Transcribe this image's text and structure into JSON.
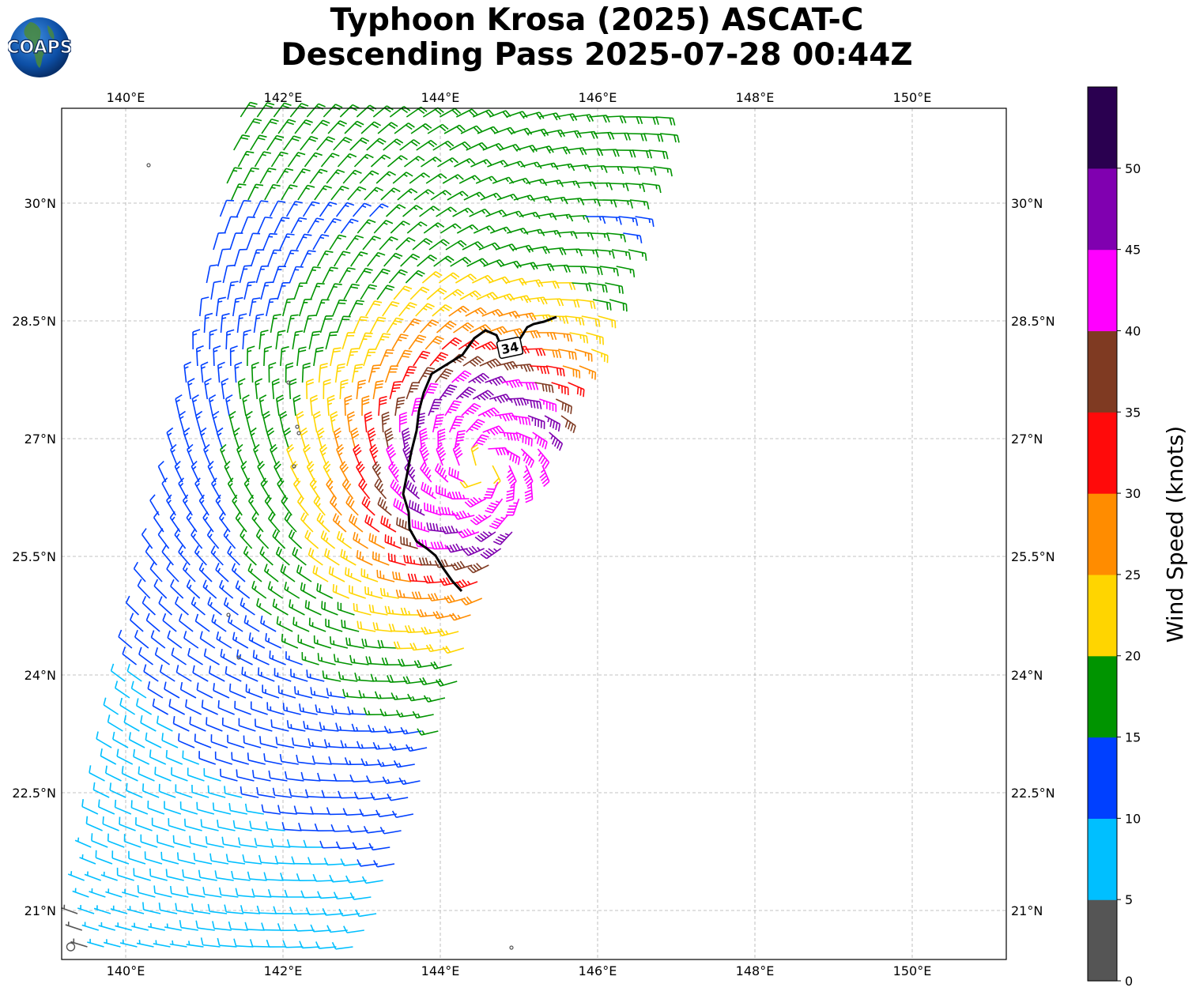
{
  "title": {
    "line1": "Typhoon Krosa (2025) ASCAT-C",
    "line2": "Descending Pass 2025-07-28 00:44Z"
  },
  "logo": {
    "text": "COAPS"
  },
  "axes": {
    "lon_labels": [
      "140°E",
      "142°E",
      "144°E",
      "146°E",
      "148°E",
      "150°E"
    ],
    "lat_labels": [
      "30°N",
      "28.5°N",
      "27°N",
      "25.5°N",
      "24°N",
      "22.5°N",
      "21°N"
    ]
  },
  "contour": {
    "label": "34",
    "color": "#000000"
  },
  "colorbar": {
    "label": "Wind Speed (knots)",
    "ticks": [
      "0",
      "5",
      "10",
      "15",
      "20",
      "25",
      "30",
      "35",
      "40",
      "45",
      "50"
    ],
    "colors": [
      "#555555",
      "#00bfff",
      "#0040ff",
      "#009400",
      "#ffd500",
      "#ff8c00",
      "#ff0a0a",
      "#7f3a22",
      "#ff00ff",
      "#8000b0",
      "#2a0050"
    ]
  },
  "colors": {
    "calm": "#555555",
    "land": "#555555",
    "grid": "#b0b0b0",
    "frame": "#000000"
  }
}
